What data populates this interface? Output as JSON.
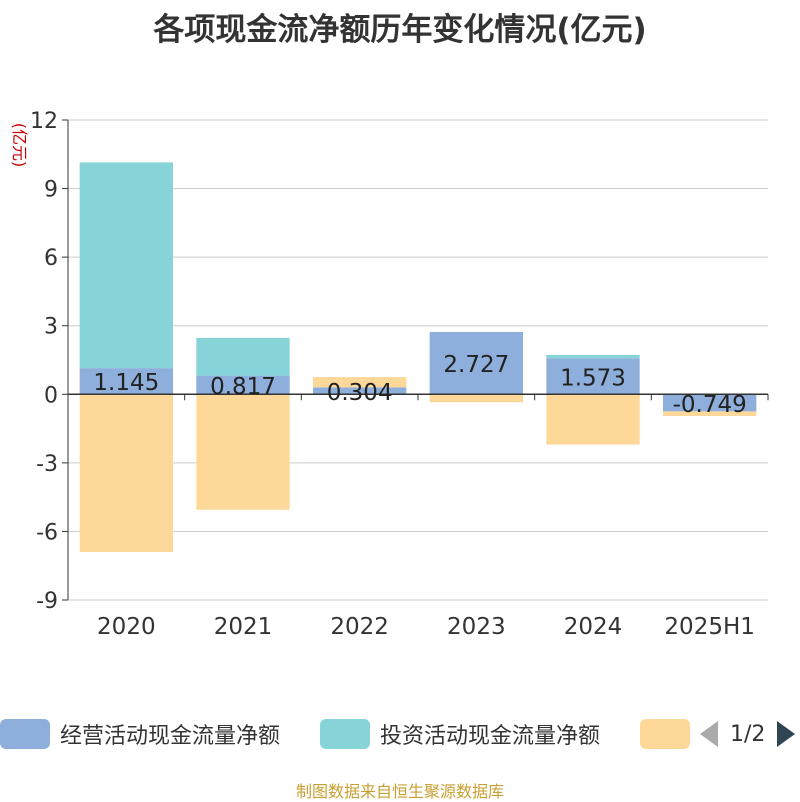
{
  "chart_data": {
    "type": "bar",
    "stacked": true,
    "title": "各项现金流净额历年变化情况(亿元)",
    "ylabel": "(亿元)",
    "categories": [
      "2020",
      "2021",
      "2022",
      "2023",
      "2024",
      "2025H1"
    ],
    "ylim": [
      -9,
      12
    ],
    "yticks": [
      -9,
      -6,
      -3,
      0,
      3,
      6,
      9,
      12
    ],
    "grid": true,
    "legend_position": "bottom",
    "series": [
      {
        "name": "经营活动现金流量净额",
        "color": "#8eaedb",
        "values": [
          1.145,
          0.817,
          0.304,
          2.727,
          1.573,
          -0.749
        ],
        "labels": [
          "1.145",
          "0.817",
          "0.304",
          "2.727",
          "1.573",
          "-0.749"
        ]
      },
      {
        "name": "投资活动现金流量净额",
        "color": "#86d4d8",
        "values": [
          9.0,
          1.65,
          0.0,
          0.0,
          0.15,
          0.0
        ]
      },
      {
        "name": "",
        "color": "#fdd898",
        "values": [
          -6.9,
          -5.05,
          0.45,
          -0.35,
          -2.2,
          -0.2
        ]
      }
    ]
  },
  "pager": {
    "text": "1/2"
  },
  "source": "制图数据来自恒生聚源数据库"
}
